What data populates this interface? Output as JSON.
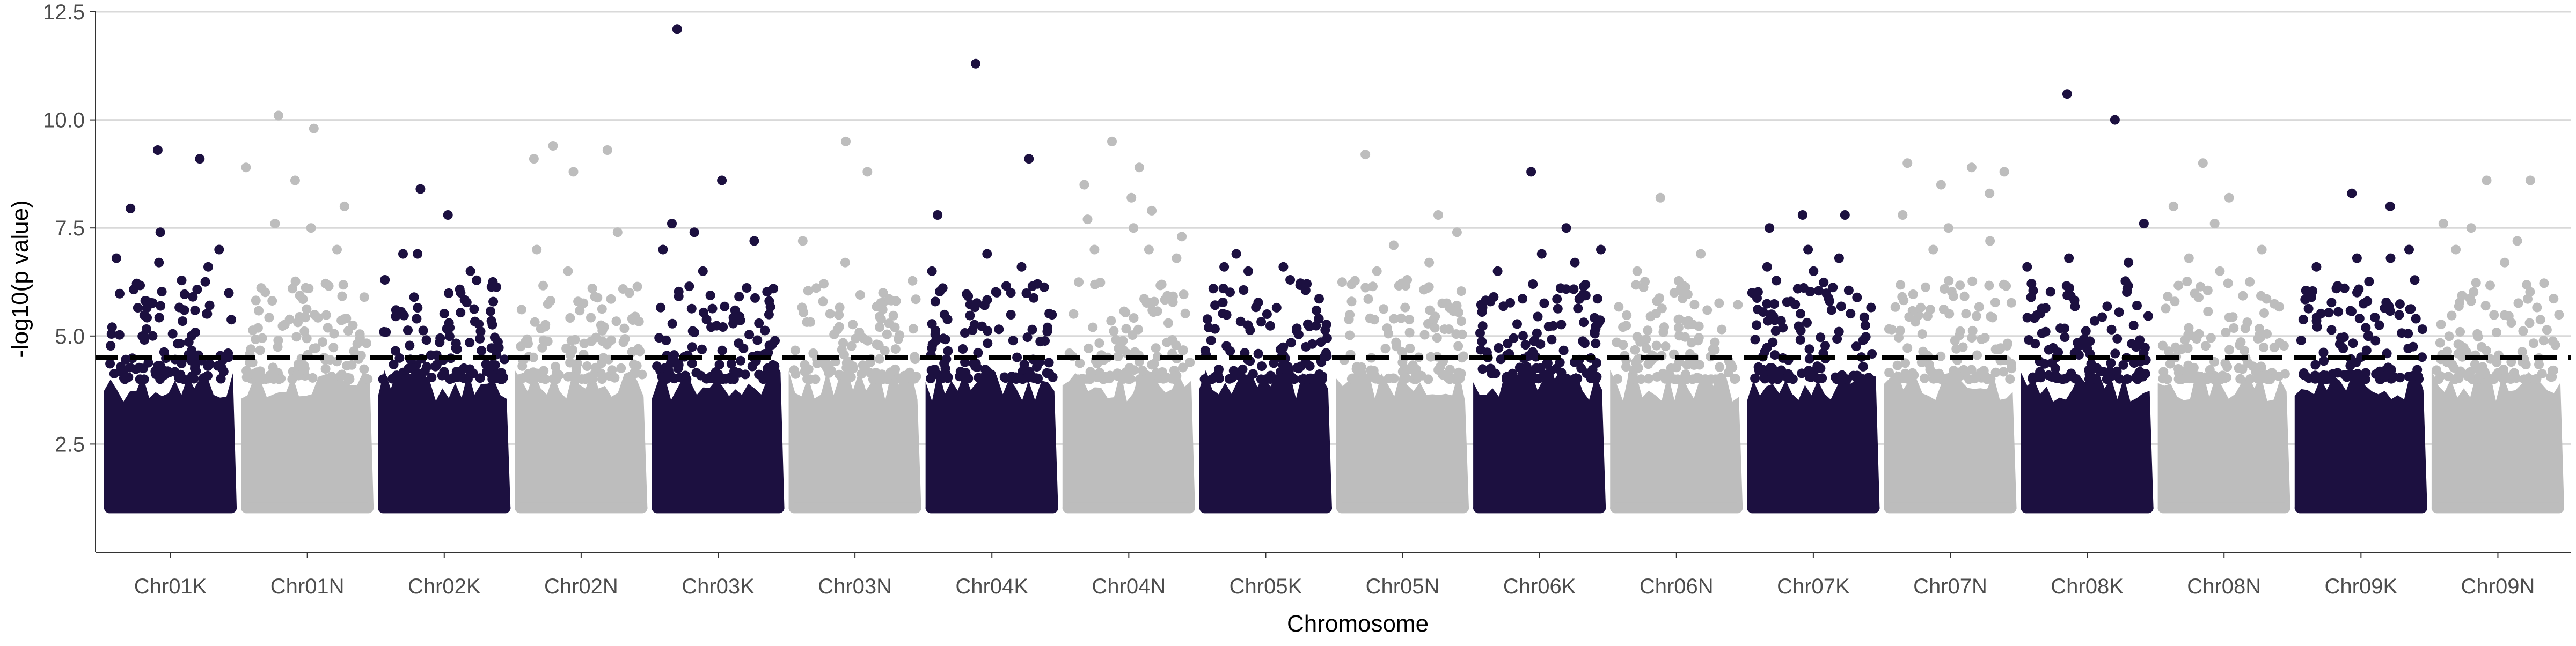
{
  "chart_data": {
    "type": "scatter",
    "subtype": "manhattan",
    "title": "",
    "xlabel": "Chromosome",
    "ylabel": "-log10(p value)",
    "ylim": [
      0,
      12.5
    ],
    "yticks": [
      2.5,
      5.0,
      7.5,
      10.0,
      12.5
    ],
    "ytick_labels": [
      "2.5",
      "5.0",
      "7.5",
      "10.0",
      "12.5"
    ],
    "grid": "horizontal major gridlines",
    "threshold": 4.5,
    "threshold_style": "dashed black",
    "colors": {
      "dark": "#1c1040",
      "light": "#bdbdbd",
      "grid": "#d9d9d9",
      "threshold": "#000000"
    },
    "point_floor": 1.0,
    "categories": [
      "Chr01K",
      "Chr01N",
      "Chr02K",
      "Chr02N",
      "Chr03K",
      "Chr03N",
      "Chr04K",
      "Chr04N",
      "Chr05K",
      "Chr05N",
      "Chr06K",
      "Chr06N",
      "Chr07K",
      "Chr07N",
      "Chr08K",
      "Chr08N",
      "Chr09K",
      "Chr09N"
    ],
    "chromosomes": [
      {
        "name": "Chr01K",
        "color": "dark",
        "max": 9.3,
        "top_points": [
          9.3,
          9.1,
          7.95,
          7.4,
          7.0,
          6.8,
          6.7,
          6.6
        ]
      },
      {
        "name": "Chr01N",
        "color": "light",
        "max": 10.1,
        "top_points": [
          10.1,
          9.8,
          8.9,
          8.6,
          8.0,
          7.6,
          7.5,
          7.0
        ]
      },
      {
        "name": "Chr02K",
        "color": "dark",
        "max": 8.4,
        "top_points": [
          8.4,
          7.8,
          6.9,
          6.9,
          6.5,
          6.3,
          6.0
        ]
      },
      {
        "name": "Chr02N",
        "color": "light",
        "max": 9.4,
        "top_points": [
          9.4,
          9.3,
          9.1,
          8.8,
          7.4,
          7.0,
          6.5
        ]
      },
      {
        "name": "Chr03K",
        "color": "dark",
        "max": 12.1,
        "top_points": [
          12.1,
          8.6,
          7.6,
          7.4,
          7.2,
          7.0,
          6.5
        ]
      },
      {
        "name": "Chr03N",
        "color": "light",
        "max": 9.5,
        "top_points": [
          9.5,
          8.8,
          7.2,
          6.7,
          6.0,
          5.8
        ]
      },
      {
        "name": "Chr04K",
        "color": "dark",
        "max": 11.3,
        "top_points": [
          11.3,
          9.1,
          7.8,
          6.9,
          6.6,
          6.5,
          6.0
        ]
      },
      {
        "name": "Chr04N",
        "color": "light",
        "max": 9.5,
        "top_points": [
          9.5,
          8.9,
          8.5,
          8.2,
          7.9,
          7.7,
          7.5,
          7.3,
          7.0,
          7.0,
          6.8
        ]
      },
      {
        "name": "Chr05K",
        "color": "dark",
        "max": 6.9,
        "top_points": [
          6.9,
          6.6,
          6.6,
          6.5,
          6.3,
          6.1
        ]
      },
      {
        "name": "Chr05N",
        "color": "light",
        "max": 9.2,
        "top_points": [
          9.2,
          7.8,
          7.4,
          7.1,
          6.7,
          6.5,
          6.3
        ]
      },
      {
        "name": "Chr06K",
        "color": "dark",
        "max": 8.8,
        "top_points": [
          8.8,
          7.5,
          7.0,
          6.9,
          6.7,
          6.5,
          6.2
        ]
      },
      {
        "name": "Chr06N",
        "color": "light",
        "max": 8.2,
        "top_points": [
          8.2,
          6.9,
          6.5,
          6.0,
          5.6
        ]
      },
      {
        "name": "Chr07K",
        "color": "dark",
        "max": 7.8,
        "top_points": [
          7.8,
          7.8,
          7.5,
          7.0,
          6.8,
          6.6,
          6.5
        ]
      },
      {
        "name": "Chr07N",
        "color": "light",
        "max": 9.0,
        "top_points": [
          9.0,
          8.9,
          8.8,
          8.5,
          8.3,
          7.8,
          7.5,
          7.2,
          7.0
        ]
      },
      {
        "name": "Chr08K",
        "color": "dark",
        "max": 10.6,
        "top_points": [
          10.6,
          10.0,
          7.6,
          6.8,
          6.7,
          6.6
        ]
      },
      {
        "name": "Chr08N",
        "color": "light",
        "max": 9.0,
        "top_points": [
          9.0,
          8.2,
          8.0,
          7.6,
          7.0,
          6.8,
          6.5
        ]
      },
      {
        "name": "Chr09K",
        "color": "dark",
        "max": 8.3,
        "top_points": [
          8.3,
          8.0,
          7.0,
          6.8,
          6.8,
          6.6
        ]
      },
      {
        "name": "Chr09N",
        "color": "light",
        "max": 8.6,
        "top_points": [
          8.6,
          8.6,
          7.6,
          7.5,
          7.2,
          7.0,
          6.7
        ]
      }
    ]
  }
}
